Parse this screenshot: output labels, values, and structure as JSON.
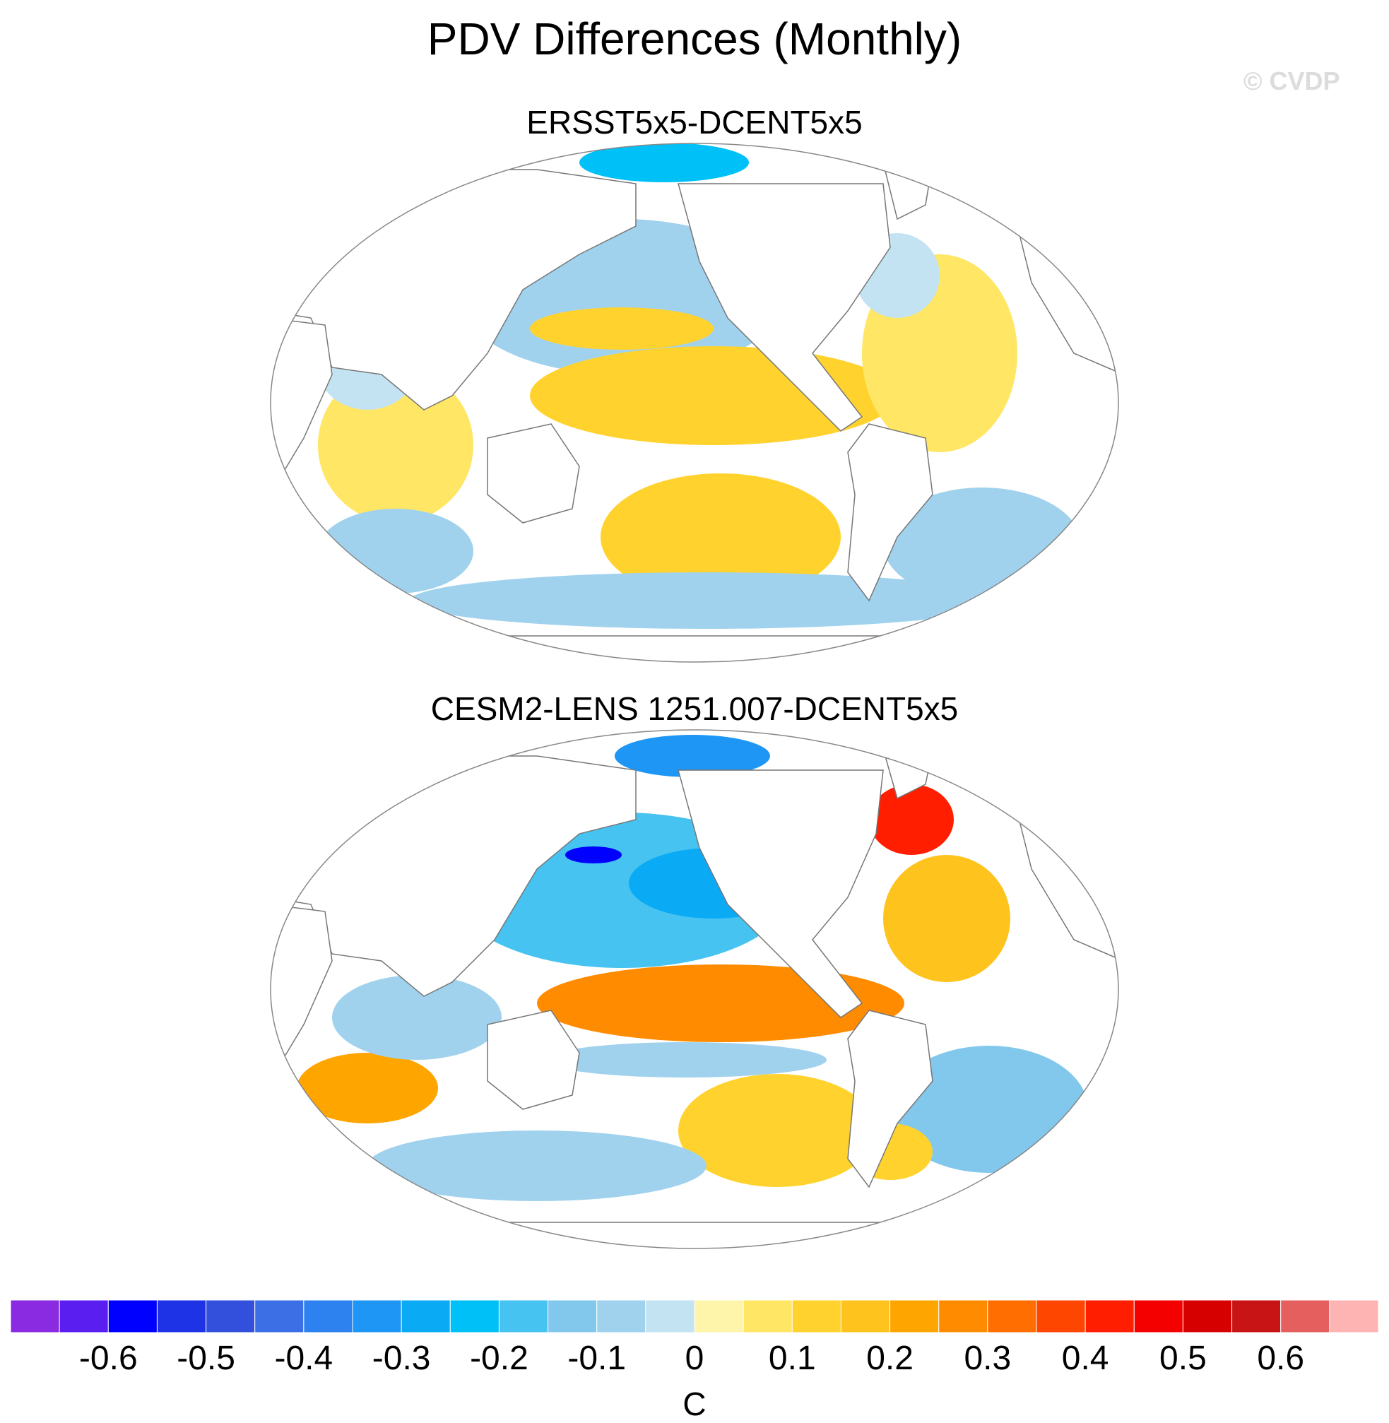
{
  "title": "PDV Differences (Monthly)",
  "copyright": "© CVDP",
  "chart_data": {
    "type": "heatmap",
    "projection": "Robinson (Pacific-centered)",
    "units": "C",
    "colorbar": {
      "levels": [
        -0.65,
        -0.6,
        -0.55,
        -0.5,
        -0.45,
        -0.4,
        -0.35,
        -0.3,
        -0.25,
        -0.2,
        -0.15,
        -0.1,
        -0.05,
        0,
        0.05,
        0.1,
        0.15,
        0.2,
        0.25,
        0.3,
        0.35,
        0.4,
        0.45,
        0.5,
        0.55,
        0.6,
        0.65
      ],
      "colors": [
        "#8a2be2",
        "#5a1ef0",
        "#0000ff",
        "#1e32e6",
        "#3250dc",
        "#3c6ee6",
        "#2d82f0",
        "#1e96f5",
        "#0aaaf5",
        "#00c0f8",
        "#46c3f0",
        "#82c8ec",
        "#a0d2ee",
        "#c3e3f2",
        "#fff5aa",
        "#ffe664",
        "#ffd22d",
        "#ffc31e",
        "#ffa500",
        "#ff8c00",
        "#ff6e00",
        "#ff4600",
        "#ff1e00",
        "#f50000",
        "#d70000",
        "#c81414",
        "#e65f5f",
        "#ffb4b4"
      ],
      "tick_labels": [
        "-0.6",
        "-0.5",
        "-0.4",
        "-0.3",
        "-0.2",
        "-0.1",
        "0",
        "0.1",
        "0.2",
        "0.3",
        "0.4",
        "0.5",
        "0.6"
      ]
    },
    "panels": [
      {
        "title": "ERSST5x5-DCENT5x5",
        "regions": [
          {
            "name": "north-pacific-cool",
            "value": -0.1
          },
          {
            "name": "bering-arctic-cool",
            "value": -0.25
          },
          {
            "name": "central-pacific-warm",
            "value": 0.1
          },
          {
            "name": "tropical-pacific-warm",
            "value": 0.1
          },
          {
            "name": "south-pacific-warm",
            "value": 0.1
          },
          {
            "name": "indian-ocean-warm",
            "value": 0.05
          },
          {
            "name": "indian-ocean-cool",
            "value": -0.05
          },
          {
            "name": "south-indian-cool",
            "value": -0.1
          },
          {
            "name": "south-atlantic-cool",
            "value": -0.1
          },
          {
            "name": "north-atlantic-warm",
            "value": 0.05
          },
          {
            "name": "labrador-cool",
            "value": -0.05
          },
          {
            "name": "southern-ocean-cool",
            "value": -0.1
          }
        ]
      },
      {
        "title": "CESM2-LENS 1251.007-DCENT5x5",
        "regions": [
          {
            "name": "kuroshio-strong-cool",
            "value": -0.6
          },
          {
            "name": "north-pacific-cool",
            "value": -0.2
          },
          {
            "name": "gulf-of-alaska-cool",
            "value": -0.3
          },
          {
            "name": "bering-arctic-cool",
            "value": -0.35
          },
          {
            "name": "tropical-pacific-warm",
            "value": 0.25
          },
          {
            "name": "south-pacific-warm",
            "value": 0.1
          },
          {
            "name": "south-pacific-cool-band",
            "value": -0.1
          },
          {
            "name": "west-australia-warm",
            "value": 0.2
          },
          {
            "name": "indian-ocean-cool",
            "value": -0.1
          },
          {
            "name": "labrador-warm",
            "value": 0.4
          },
          {
            "name": "north-atlantic-warm",
            "value": 0.15
          },
          {
            "name": "south-atlantic-cool",
            "value": -0.15
          },
          {
            "name": "south-atlantic-warm",
            "value": 0.1
          },
          {
            "name": "southern-ocean-cool",
            "value": -0.1
          }
        ]
      }
    ]
  }
}
